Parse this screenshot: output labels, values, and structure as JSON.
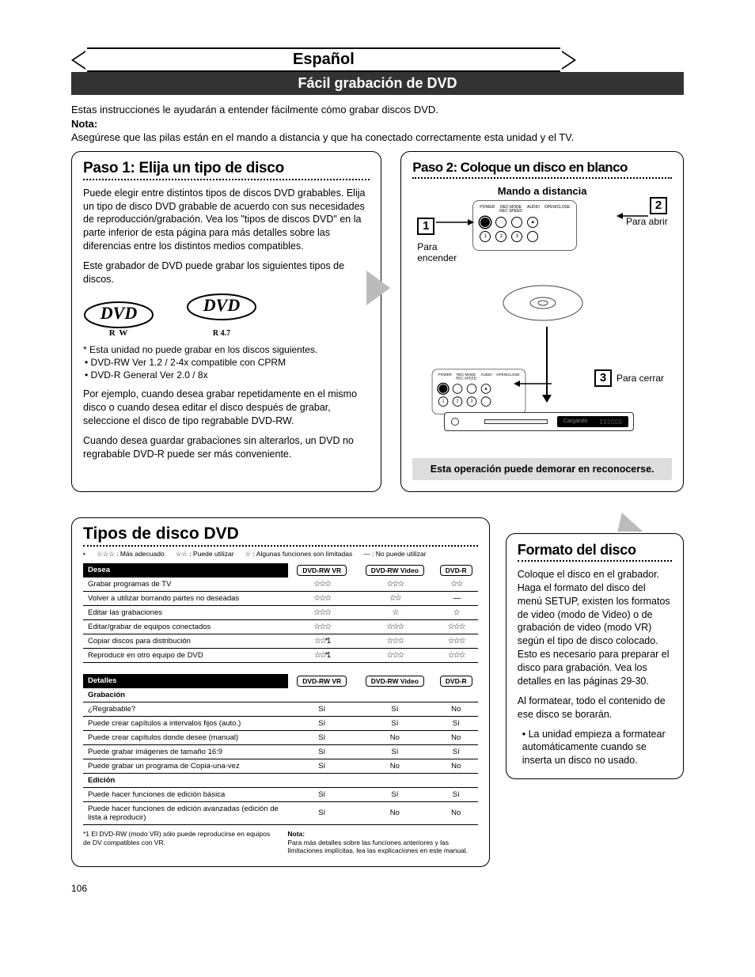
{
  "language": "Español",
  "mainTitle": "Fácil grabación de DVD",
  "intro": {
    "line1": "Estas instrucciones le ayudarán a entender fácilmente cómo grabar discos DVD.",
    "noteLabel": "Nota:",
    "line2": "Asegúrese que las pilas están en el mando a distancia y que ha conectado correctamente esta unidad y el TV."
  },
  "step1": {
    "heading": "Paso 1: Elija un tipo de disco",
    "p1": "Puede elegir entre distintos tipos de discos DVD grabables. Elija un tipo de disco DVD grabable de acuerdo con sus necesidades de reproducción/grabación. Vea los \"tipos de discos DVD\" en la parte inferior de esta página para más detalles sobre las diferencias entre los distintos medios compatibles.",
    "p2": "Este grabador de DVD puede grabar los siguientes tipos de discos.",
    "logo1Sub": "R W",
    "logo2Sub": "R 4.7",
    "noCannot": "* Esta unidad no puede grabar en los discos siguientes.",
    "noList1": "• DVD-RW Ver 1.2 / 2-4x compatible con CPRM",
    "noList2": "• DVD-R General Ver 2.0 / 8x",
    "p3": "Por ejemplo, cuando desea grabar repetidamente en el mismo disco o cuando desea editar el disco después de grabar, seleccione el disco de tipo regrabable DVD-RW.",
    "p4": "Cuando desea guardar grabaciones sin alterarlos, un DVD no regrabable DVD-R puede ser más conveniente."
  },
  "step2": {
    "heading": "Paso 2: Coloque un disco en blanco",
    "remoteLabel": "Mando a distancia",
    "num1": "1",
    "label1": "Para encender",
    "num2": "2",
    "label2": "Para abrir",
    "num3": "3",
    "label3": "Para cerrar",
    "loading": "Cargando",
    "warning": "Esta operación puede demorar en reconocerse."
  },
  "types": {
    "heading": "Tipos de disco DVD",
    "legend": {
      "l1": "☆☆☆ : Más adecuado",
      "l2": "☆☆ : Puede utilizar",
      "l3": "☆ : Algunas funciones son limitadas",
      "l4": "— : No puede utilizar"
    },
    "cols": {
      "c0a": "Desea",
      "c0b": "Detalles",
      "c1": "DVD-RW VR",
      "c2": "DVD-RW Video",
      "c3": "DVD-R"
    },
    "table1": [
      {
        "label": "Grabar programas de TV",
        "c1": "☆☆☆",
        "c2": "☆☆☆",
        "c3": "☆☆"
      },
      {
        "label": "Volver a utilizar borrando partes no deseadas",
        "c1": "☆☆☆",
        "c2": "☆☆",
        "c3": "—"
      },
      {
        "label": "Editar las grabaciones",
        "c1": "☆☆☆",
        "c2": "☆",
        "c3": "☆"
      },
      {
        "label": "Editar/grabar de equipos conectados",
        "c1": "☆☆☆",
        "c2": "☆☆☆",
        "c3": "☆☆☆"
      },
      {
        "label": "Copiar discos para distribución",
        "c1": "☆☆*1",
        "c2": "☆☆☆",
        "c3": "☆☆☆"
      },
      {
        "label": "Reproducir en otro equipo de DVD",
        "c1": "☆☆*1",
        "c2": "☆☆☆",
        "c3": "☆☆☆"
      }
    ],
    "sections": {
      "grabacion": "Grabación",
      "edicion": "Edición"
    },
    "table2": [
      {
        "section": "grabacion"
      },
      {
        "label": "¿Regrabable?",
        "c1": "Sí",
        "c2": "Sí",
        "c3": "No"
      },
      {
        "label": "Puede crear capítulos a intervalos fijos (auto.)",
        "c1": "Sí",
        "c2": "Sí",
        "c3": "Sí"
      },
      {
        "label": "Puede crear capítulos donde desee (manual)",
        "c1": "Sí",
        "c2": "No",
        "c3": "No"
      },
      {
        "label": "Puede grabar imágenes de tamaño 16:9",
        "c1": "Sí",
        "c2": "Sí",
        "c3": "Sí"
      },
      {
        "label": "Puede grabar un programa de Copia-una-vez",
        "c1": "Sí",
        "c2": "No",
        "c3": "No"
      },
      {
        "section": "edicion"
      },
      {
        "label": "Puede hacer funciones de edición básica",
        "c1": "Sí",
        "c2": "Sí",
        "c3": "Sí"
      },
      {
        "label": "Puede hacer funciones de edición avanzadas (edición de lista a reproducir)",
        "c1": "Sí",
        "c2": "No",
        "c3": "No"
      }
    ],
    "foot1a": "*1",
    "foot1b": "El DVD-RW (modo VR) sólo puede reproducirse en equipos de DV compatibles con VR.",
    "foot2Label": "Nota:",
    "foot2": "Para más detalles sobre las funciones anteriores y las limitaciones implícitas, lea las explicaciones en este manual."
  },
  "format": {
    "heading": "Formato del disco",
    "p1": "Coloque el disco en el grabador. Haga el formato del disco del menú SETUP, existen los formatos de video (modo de Video) o de grabación de video (modo VR) según el tipo de disco colocado. Esto es necesario para preparar el disco para grabación. Vea los detalles en las páginas 29-30.",
    "p2": "Al formatear, todo el contenido de ese disco se borarán.",
    "bullet": "• La unidad empieza a formatear automáticamente cuando se inserta un disco no usado."
  },
  "pageNum": "106"
}
